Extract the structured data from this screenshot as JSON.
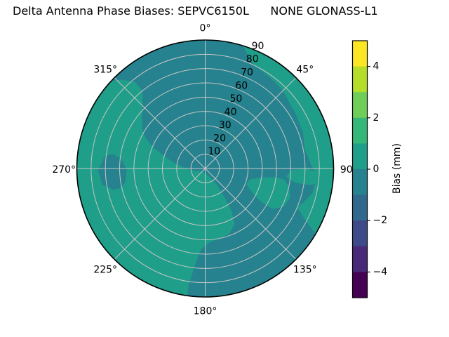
{
  "title": "Delta Antenna Phase Biases: SEPVC6150L      NONE GLONASS-L1",
  "chart_data": {
    "type": "polar_contour",
    "title": "Delta Antenna Phase Biases: SEPVC6150L      NONE GLONASS-L1",
    "angular_unit": "degrees_clockwise_from_north",
    "angular_ticks": [
      {
        "angle": 0,
        "label": "0°"
      },
      {
        "angle": 45,
        "label": "45°"
      },
      {
        "angle": 90,
        "label": "90"
      },
      {
        "angle": 135,
        "label": "135°"
      },
      {
        "angle": 180,
        "label": "180°"
      },
      {
        "angle": 225,
        "label": "225°"
      },
      {
        "angle": 270,
        "label": "270°"
      },
      {
        "angle": 315,
        "label": "315°"
      }
    ],
    "radial_ticks": [
      "10",
      "20",
      "30",
      "40",
      "50",
      "60",
      "70",
      "80",
      "90"
    ],
    "radial_tick_angle_deg": 22.5,
    "rmax": 90,
    "grid": true,
    "grid_color": "#c6c6c6",
    "outline_color": "#000000",
    "colorbar": {
      "label": "Bias (mm)",
      "min": -5,
      "max": 5,
      "levels": [
        -5,
        -4,
        -3,
        -2,
        -1,
        0,
        1,
        2,
        3,
        4,
        5
      ],
      "colors_low_to_high": [
        "#440154",
        "#482878",
        "#3e4989",
        "#31688e",
        "#26828e",
        "#1f9e89",
        "#35b779",
        "#6ece58",
        "#b5de2b",
        "#fde725"
      ],
      "ticks": [
        {
          "value": 4,
          "label": "4"
        },
        {
          "value": 2,
          "label": "2"
        },
        {
          "value": 0,
          "label": "0"
        },
        {
          "value": -2,
          "label": "−2"
        },
        {
          "value": -4,
          "label": "−4"
        }
      ],
      "position": "right"
    },
    "base_band": {
      "range_mm": "0 to 1",
      "color": "#1f9e89"
    },
    "regions": [
      {
        "name": "bias-band-minus1-to-0-main",
        "range_mm": "-1 to 0",
        "color": "#26828e",
        "points_az_r": [
          [
            311,
            95
          ],
          [
            320,
            95
          ],
          [
            330,
            95
          ],
          [
            340,
            95
          ],
          [
            350,
            95
          ],
          [
            0,
            95
          ],
          [
            8,
            95
          ],
          [
            15,
            95
          ],
          [
            19,
            87
          ],
          [
            24,
            81
          ],
          [
            30,
            79
          ],
          [
            38,
            78
          ],
          [
            45,
            77
          ],
          [
            52,
            75
          ],
          [
            60,
            74
          ],
          [
            70,
            73
          ],
          [
            79,
            71
          ],
          [
            85,
            73
          ],
          [
            91,
            76
          ],
          [
            97,
            78
          ],
          [
            103,
            77
          ],
          [
            109,
            73
          ],
          [
            113,
            70
          ],
          [
            116,
            76
          ],
          [
            119,
            84
          ],
          [
            122,
            95
          ],
          [
            132,
            95
          ],
          [
            144,
            95
          ],
          [
            156,
            95
          ],
          [
            168,
            95
          ],
          [
            180,
            95
          ],
          [
            188,
            95
          ],
          [
            188,
            82
          ],
          [
            186,
            68
          ],
          [
            183,
            57
          ],
          [
            177,
            52
          ],
          [
            169,
            50
          ],
          [
            160,
            49
          ],
          [
            152,
            44
          ],
          [
            148,
            35
          ],
          [
            146,
            24
          ],
          [
            144,
            13
          ],
          [
            160,
            5
          ],
          [
            185,
            3
          ],
          [
            215,
            3
          ],
          [
            242,
            4
          ],
          [
            256,
            7
          ],
          [
            266,
            11
          ],
          [
            274,
            16
          ],
          [
            281,
            23
          ],
          [
            287,
            30
          ],
          [
            292,
            39
          ],
          [
            297,
            47
          ],
          [
            302,
            52
          ],
          [
            309,
            57
          ],
          [
            316,
            63
          ],
          [
            321,
            70
          ],
          [
            321,
            78
          ],
          [
            317,
            85
          ],
          [
            313,
            90
          ]
        ]
      },
      {
        "name": "bias-band-minus1-to-0-west-patch",
        "range_mm": "-1 to 0",
        "color": "#26828e",
        "points_az_r": [
          [
            260,
            57
          ],
          [
            269,
            55
          ],
          [
            276,
            59
          ],
          [
            279,
            65
          ],
          [
            277,
            71
          ],
          [
            269,
            75
          ],
          [
            261,
            73
          ],
          [
            257,
            66
          ],
          [
            257,
            61
          ]
        ]
      },
      {
        "name": "bias-band-0-to-1-southeast-pocket",
        "range_mm": "0 to 1",
        "color": "#1f9e89",
        "points_az_r": [
          [
            97,
            50
          ],
          [
            99,
            40
          ],
          [
            104,
            32
          ],
          [
            111,
            31
          ],
          [
            117,
            37
          ],
          [
            121,
            46
          ],
          [
            121,
            55
          ],
          [
            116,
            61
          ],
          [
            109,
            63
          ],
          [
            102,
            60
          ],
          [
            98,
            56
          ]
        ]
      },
      {
        "name": "bias-band-0-to-1-east-bridge",
        "range_mm": "0 to 1",
        "color": "#1f9e89",
        "points_az_r": [
          [
            91,
            60
          ],
          [
            90,
            72
          ],
          [
            93,
            80
          ],
          [
            97,
            82
          ],
          [
            99,
            74
          ],
          [
            99,
            64
          ],
          [
            96,
            57
          ]
        ]
      }
    ]
  }
}
